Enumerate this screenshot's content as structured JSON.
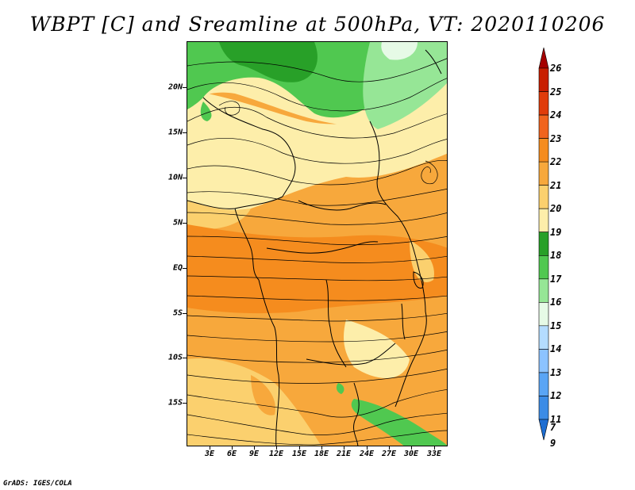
{
  "title": "WBPT [C] and Sreamline at 500hPa, VT: 2020110206",
  "credit": "GrADS: IGES/COLA",
  "map": {
    "lat_labels": [
      "20N",
      "15N",
      "10N",
      "5N",
      "EQ",
      "5S",
      "10S",
      "15S"
    ],
    "lon_labels": [
      "3E",
      "6E",
      "9E",
      "12E",
      "15E",
      "18E",
      "21E",
      "24E",
      "27E",
      "30E",
      "33E"
    ]
  },
  "colorbar": {
    "levels": [
      "26",
      "25",
      "24",
      "23",
      "22",
      "21",
      "20",
      "19",
      "18",
      "17",
      "16",
      "15",
      "14",
      "13",
      "12",
      "11",
      "9",
      "7"
    ],
    "colors": [
      "#a50000",
      "#c81e00",
      "#e03c0a",
      "#f0641e",
      "#f58c1e",
      "#f7a83c",
      "#fbd06e",
      "#fdeeaa",
      "#28a028",
      "#50c850",
      "#96e696",
      "#e6fae6",
      "#b4dcff",
      "#8cc3ff",
      "#5aa5f5",
      "#3c8ce6",
      "#1e6ed2"
    ]
  },
  "colors": {
    "light_yellow": "#fdeeaa",
    "yellow": "#fbd06e",
    "orange_light": "#f7a83c",
    "orange": "#f58c1e",
    "orange_dark": "#f0641e",
    "green_dark": "#28a028",
    "green": "#50c850",
    "green_light": "#96e696",
    "cyan_pale": "#e6fae6"
  }
}
